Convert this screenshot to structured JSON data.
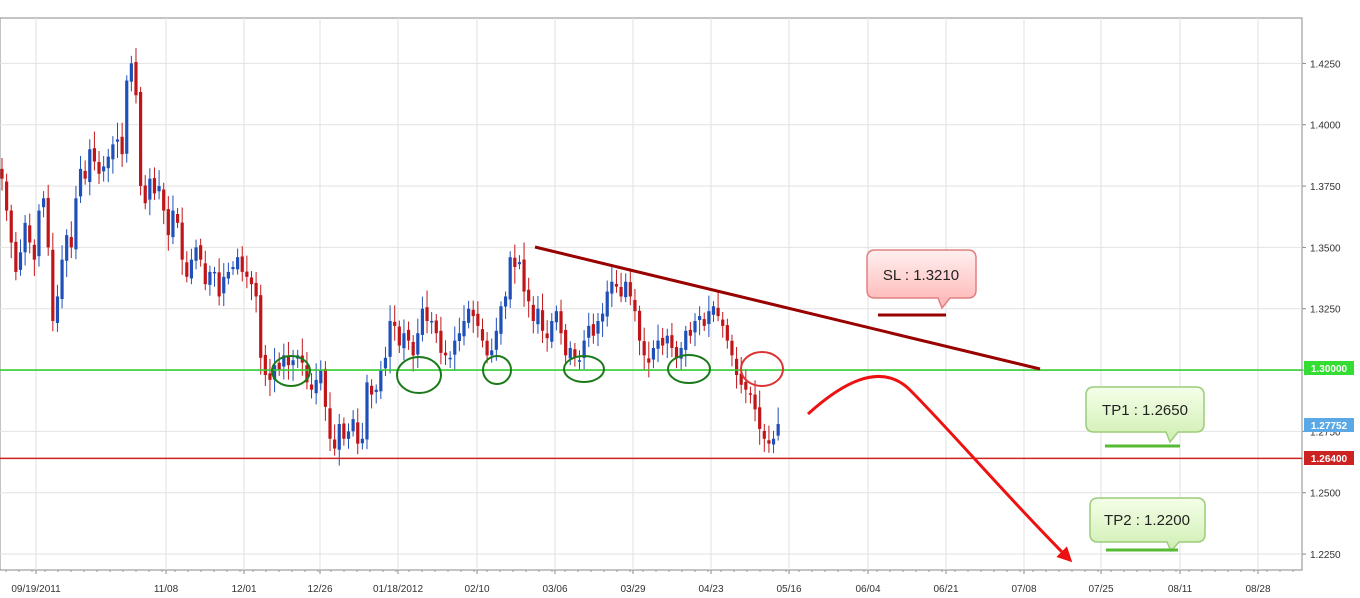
{
  "chart_data": {
    "type": "candlestick",
    "ylim": [
      1.2185,
      1.4435
    ],
    "y_ticks": [
      "1.4250",
      "1.4000",
      "1.3750",
      "1.3500",
      "1.3250",
      "1.3000",
      "1.2750",
      "1.2500",
      "1.2250"
    ],
    "x_ticks": [
      "09/19/2011",
      "11/08",
      "12/01",
      "12/26",
      "01/18/2012",
      "02/10",
      "03/06",
      "03/29",
      "04/23",
      "05/16",
      "06/04",
      "06/21",
      "07/08",
      "07/25",
      "08/11",
      "08/28"
    ],
    "horizontal_lines": [
      {
        "name": "support-1.3000",
        "value": 1.3,
        "color": "#33cc33",
        "badge": "1.30000"
      },
      {
        "name": "support-1.2640",
        "value": 1.264,
        "color": "#cc2222",
        "badge": "1.26400"
      }
    ],
    "current_price": {
      "value": 1.2775,
      "badge": "1.27752",
      "color": "#5aa9e6"
    },
    "trendline": {
      "from": {
        "x_index": 112,
        "y": 1.3485
      },
      "to": {
        "x_index": 174,
        "y": 1.3005
      },
      "color": "#990000"
    },
    "annotations": [
      {
        "label": "SL : 1.3210",
        "kind": "stop-loss",
        "value": 1.321
      },
      {
        "label": "TP1 : 1.2650",
        "kind": "take-profit",
        "value": 1.265
      },
      {
        "label": "TP2 : 1.2200",
        "kind": "take-profit",
        "value": 1.22
      }
    ],
    "candles_close": [
      1.378,
      1.365,
      1.352,
      1.34,
      1.348,
      1.36,
      1.352,
      1.345,
      1.365,
      1.37,
      1.35,
      1.32,
      1.33,
      1.345,
      1.355,
      1.35,
      1.37,
      1.382,
      1.378,
      1.39,
      1.385,
      1.38,
      1.383,
      1.387,
      1.392,
      1.394,
      1.388,
      1.418,
      1.425,
      1.412,
      1.375,
      1.368,
      1.378,
      1.372,
      1.375,
      1.365,
      1.355,
      1.365,
      1.36,
      1.345,
      1.338,
      1.345,
      1.35,
      1.345,
      1.335,
      1.34,
      1.34,
      1.33,
      1.338,
      1.34,
      1.342,
      1.346,
      1.34,
      1.338,
      1.335,
      1.33,
      1.305,
      1.298,
      1.296,
      1.302,
      1.3,
      1.306,
      1.302,
      1.304,
      1.306,
      1.303,
      1.295,
      1.292,
      1.296,
      1.3,
      1.285,
      1.272,
      1.268,
      1.278,
      1.272,
      1.275,
      1.28,
      1.27,
      1.272,
      1.295,
      1.29,
      1.292,
      1.3,
      1.305,
      1.32,
      1.318,
      1.31,
      1.315,
      1.312,
      1.306,
      1.315,
      1.325,
      1.32,
      1.32,
      1.315,
      1.307,
      1.306,
      1.305,
      1.312,
      1.315,
      1.32,
      1.325,
      1.322,
      1.318,
      1.312,
      1.306,
      1.308,
      1.316,
      1.326,
      1.33,
      1.346,
      1.342,
      1.344,
      1.332,
      1.328,
      1.32,
      1.325,
      1.316,
      1.313,
      1.32,
      1.324,
      1.315,
      1.306,
      1.309,
      1.305,
      1.304,
      1.312,
      1.318,
      1.314,
      1.32,
      1.323,
      1.332,
      1.336,
      1.334,
      1.33,
      1.336,
      1.33,
      1.324,
      1.312,
      1.306,
      1.303,
      1.309,
      1.312,
      1.31,
      1.314,
      1.309,
      1.305,
      1.309,
      1.316,
      1.314,
      1.32,
      1.322,
      1.318,
      1.324,
      1.326,
      1.322,
      1.318,
      1.312,
      1.306,
      1.298,
      1.294,
      1.292,
      1.29,
      1.284,
      1.276,
      1.272,
      1.27,
      1.272,
      1.278
    ]
  }
}
